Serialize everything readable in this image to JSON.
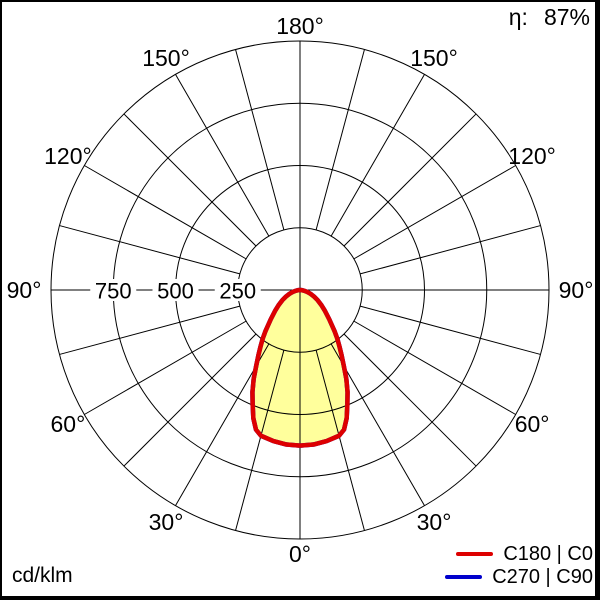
{
  "header": {
    "efficiency_symbol": "η:",
    "efficiency_value": "87%"
  },
  "footer": {
    "unit_label": "cd/klm"
  },
  "legend": {
    "items": [
      {
        "label": "C180 | C0",
        "color": "#dd0000"
      },
      {
        "label": "C270 | C90",
        "color": "#0000cc"
      }
    ]
  },
  "colors": {
    "curve_c0": "#dd0000",
    "curve_c90": "#0000cc",
    "curve_fill": "#ffff9c",
    "grid": "#000000",
    "background": "#ffffff"
  },
  "chart_data": {
    "type": "polar",
    "subtype": "luminous-intensity-distribution",
    "units": "cd/klm",
    "efficiency": "87%",
    "radial_axis": {
      "max": 1000,
      "rings": [
        250,
        500,
        750,
        1000
      ],
      "tick_labels": [
        {
          "value": 750,
          "text": "750"
        },
        {
          "value": 500,
          "text": "500"
        },
        {
          "value": 250,
          "text": "250"
        }
      ]
    },
    "angular_axis": {
      "zero_position": "bottom",
      "minor_step_deg": 15,
      "label_step_deg": 30,
      "labels": [
        {
          "angle_deg": 180,
          "text": "180°"
        },
        {
          "angle_deg": -150,
          "text": "150°"
        },
        {
          "angle_deg": 150,
          "text": "150°"
        },
        {
          "angle_deg": -120,
          "text": "120°"
        },
        {
          "angle_deg": 120,
          "text": "120°"
        },
        {
          "angle_deg": -90,
          "text": "90°"
        },
        {
          "angle_deg": 90,
          "text": "90°"
        },
        {
          "angle_deg": -60,
          "text": "60°"
        },
        {
          "angle_deg": 60,
          "text": "60°"
        },
        {
          "angle_deg": -30,
          "text": "30°"
        },
        {
          "angle_deg": 30,
          "text": "30°"
        },
        {
          "angle_deg": 0,
          "text": "0°"
        }
      ]
    },
    "series": [
      {
        "name": "C180 | C0",
        "color": "#dd0000",
        "fill": "#ffff9c",
        "gamma_deg": [
          0,
          5,
          10,
          15,
          17.5,
          20,
          22.5,
          25,
          27.5,
          30,
          32.5,
          35,
          37.5,
          40,
          45,
          50,
          55,
          60,
          65,
          70,
          75,
          80,
          85,
          90
        ],
        "values_cd_per_klm": [
          625,
          623,
          616,
          606,
          588,
          548,
          497,
          452,
          403,
          352,
          311,
          276,
          246,
          216,
          166,
          131,
          104,
          82,
          62,
          45,
          30,
          18,
          8,
          0
        ]
      },
      {
        "name": "C270 | C90",
        "color": "#0000cc",
        "coincident_with": "C180 | C0"
      }
    ]
  }
}
